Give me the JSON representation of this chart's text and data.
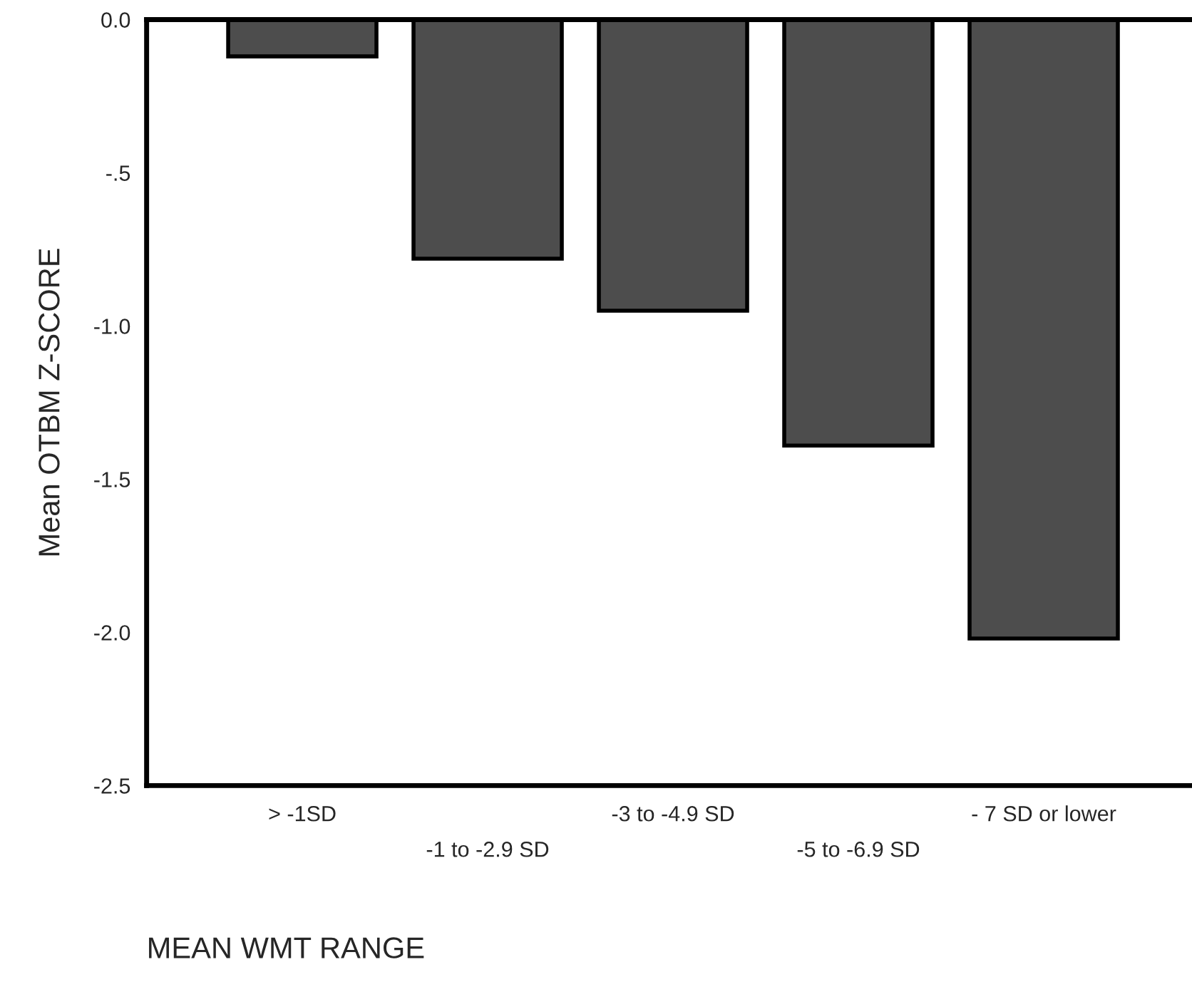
{
  "chart_data": {
    "type": "bar",
    "xlabel": "MEAN WMT RANGE",
    "ylabel": "Mean OTBM Z-SCORE",
    "categories": [
      "> -1SD",
      "-1 to -2.9 SD",
      "-3 to -4.9 SD",
      "-5 to -6.9 SD",
      "- 7 SD or lower"
    ],
    "values": [
      -0.12,
      -0.78,
      -0.95,
      -1.39,
      -2.02
    ],
    "color": "#4d4d4d",
    "ylim": [
      -2.5,
      0
    ],
    "yticks": [
      {
        "value": 0,
        "label": "0.0"
      },
      {
        "value": -0.5,
        "label": "-.5"
      },
      {
        "value": -1,
        "label": "-1.0"
      },
      {
        "value": -1.5,
        "label": "-1.5"
      },
      {
        "value": -2,
        "label": "-2.0"
      },
      {
        "value": -2.5,
        "label": "-2.5"
      }
    ],
    "grid": false,
    "legend": false
  }
}
